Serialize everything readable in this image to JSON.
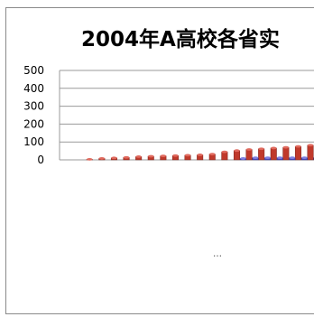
{
  "chart_data": {
    "type": "bar",
    "title": "2004年A高校各省实",
    "xlabel": "",
    "ylabel": "",
    "ylim": [
      0,
      500
    ],
    "yticks": [
      500,
      400,
      300,
      200,
      100,
      0
    ],
    "grid": true,
    "series": [
      {
        "color": "#c0392b",
        "values": [
          3,
          8,
          11,
          14,
          18,
          20,
          22,
          24,
          26,
          28,
          32,
          45,
          52,
          58,
          62,
          66,
          70,
          75,
          82
        ]
      },
      {
        "color": "#4b4bbf",
        "values": [
          0,
          0,
          0,
          0,
          0,
          0,
          0,
          0,
          0,
          0,
          0,
          0,
          8,
          12,
          12,
          12,
          12,
          12,
          12
        ]
      }
    ],
    "footnote": "…"
  }
}
